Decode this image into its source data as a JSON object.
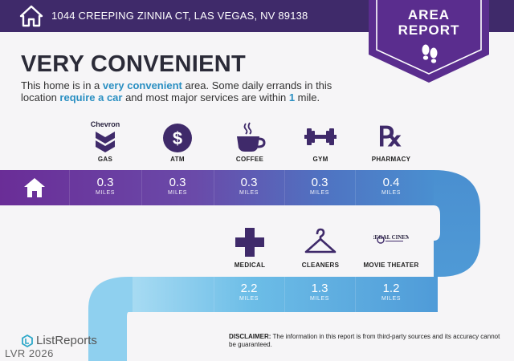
{
  "header": {
    "address": "1044 CREEPING ZINNIA CT, LAS VEGAS, NV 89138"
  },
  "badge": {
    "line1": "AREA",
    "line2": "REPORT",
    "icon": "footprints-icon"
  },
  "headline": {
    "title": "VERY CONVENIENT",
    "desc_1": "This home is in a ",
    "desc_hl_1": "very convenient",
    "desc_2": " area. Some daily errands in this location ",
    "desc_hl_2": "require a car",
    "desc_3": " and most major services are within ",
    "desc_hl_3": "1",
    "desc_4": " mile."
  },
  "unit": "MILES",
  "row1": [
    {
      "label": "GAS",
      "value": "0.3",
      "icon": "gas-station-icon",
      "logo_text": "Chevron"
    },
    {
      "label": "ATM",
      "value": "0.3",
      "icon": "dollar-icon"
    },
    {
      "label": "COFFEE",
      "value": "0.3",
      "icon": "coffee-cup-icon"
    },
    {
      "label": "GYM",
      "value": "0.3",
      "icon": "dumbbell-icon"
    },
    {
      "label": "PHARMACY",
      "value": "0.4",
      "icon": "rx-icon"
    }
  ],
  "row2": [
    {
      "label": "MEDICAL",
      "value": "2.2",
      "icon": "medical-cross-icon"
    },
    {
      "label": "CLEANERS",
      "value": "1.3",
      "icon": "hanger-icon"
    },
    {
      "label": "MOVIE THEATER",
      "value": "1.2",
      "icon": "regal-cinemas-icon",
      "logo_text": "REGAL CINEMAS"
    }
  ],
  "footer": {
    "brand": "ListReports",
    "watermark": "LVR 2026",
    "disclaimer_label": "DISCLAIMER:",
    "disclaimer_text": " The information in this report is from third-party sources and its accuracy cannot be guaranteed."
  },
  "colors": {
    "header": "#3f2a6a",
    "band_start": "#6a2f96",
    "band_end": "#4d8ed0",
    "band_light": "#7ec7ea",
    "accent_text": "#2a8fc2"
  }
}
